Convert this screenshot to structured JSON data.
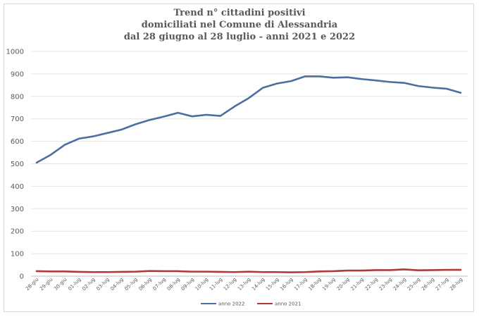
{
  "chart_data": {
    "type": "line",
    "title_lines": [
      "Trend n° cittadini positivi",
      "domiciliati nel Comune di Alessandria",
      "dal 28 giugno al 28 luglio - anni 2021 e 2022"
    ],
    "xlabel": "",
    "ylabel": "",
    "ylim": [
      0,
      1000
    ],
    "yticks": [
      "0",
      "100",
      "200",
      "300",
      "400",
      "500",
      "600",
      "700",
      "800",
      "900",
      "1000"
    ],
    "grid": true,
    "legend_position": "bottom",
    "categories": [
      "28-giu",
      "29-giu",
      "30-giu",
      "01-lug",
      "02-lug",
      "03-lug",
      "04-lug",
      "05-lug",
      "06-lug",
      "07-lug",
      "08-lug",
      "09-lug",
      "10-lug",
      "11-lug",
      "12-lug",
      "13-lug",
      "14-lug",
      "15-lug",
      "16-lug",
      "17-lug",
      "18-lug",
      "19-lug",
      "20-lug",
      "21-lug",
      "22-lug",
      "23-lug",
      "24-lug",
      "25-lug",
      "26-lug",
      "27-lug",
      "28-lug"
    ],
    "series": [
      {
        "name": "anno 2022",
        "color": "#4a6fa0",
        "values": [
          505,
          540,
          585,
          612,
          622,
          637,
          652,
          676,
          695,
          710,
          727,
          711,
          718,
          713,
          755,
          792,
          838,
          857,
          868,
          889,
          889,
          883,
          885,
          877,
          871,
          864,
          860,
          846,
          839,
          834,
          816
        ]
      },
      {
        "name": "anno 2021",
        "color": "#b03a3a",
        "values": [
          22,
          21,
          21,
          19,
          18,
          18,
          19,
          20,
          23,
          22,
          22,
          20,
          20,
          19,
          18,
          20,
          18,
          18,
          17,
          18,
          21,
          22,
          25,
          25,
          27,
          27,
          30,
          26,
          27,
          28,
          28
        ]
      }
    ]
  }
}
